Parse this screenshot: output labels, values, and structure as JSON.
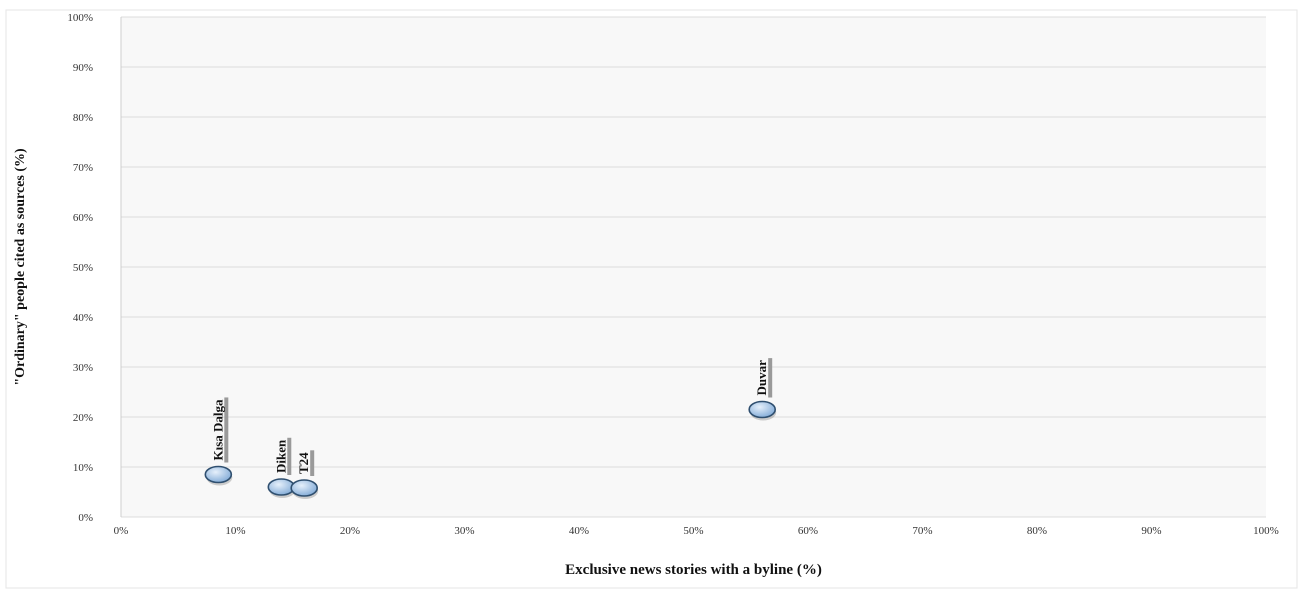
{
  "chart_data": {
    "type": "scatter",
    "title": "",
    "xlabel": "Exclusive news stories with a byline (%)",
    "ylabel": "\"Ordinary\" people cited as sources (%)",
    "xlim": [
      0,
      100
    ],
    "ylim": [
      0,
      100
    ],
    "x_ticks": [
      "0%",
      "10%",
      "20%",
      "30%",
      "40%",
      "50%",
      "60%",
      "70%",
      "80%",
      "90%",
      "100%"
    ],
    "y_ticks": [
      "0%",
      "10%",
      "20%",
      "30%",
      "40%",
      "50%",
      "60%",
      "70%",
      "80%",
      "90%",
      "100%"
    ],
    "grid": "horizontal",
    "legend": "none",
    "points": [
      {
        "label": "Kısa Dalga",
        "x": 8.5,
        "y": 8.5
      },
      {
        "label": "Diken",
        "x": 14,
        "y": 6
      },
      {
        "label": "T24",
        "x": 16,
        "y": 5.8
      },
      {
        "label": "Duvar",
        "x": 56,
        "y": 21.5
      }
    ],
    "colors": {
      "plot_background": "#f8f8f8",
      "gridline": "#dcdcdc",
      "marker_fill": "#7fa9d6",
      "marker_highlight": "#e6f0fb",
      "marker_stroke": "#2f4f6f"
    }
  }
}
